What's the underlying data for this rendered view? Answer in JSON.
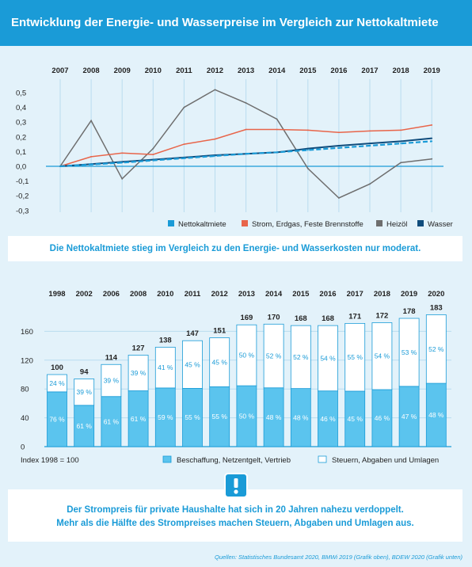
{
  "title": "Entwicklung der Energie- und Wasserpreise im Vergleich zur Nettokaltmiete",
  "colors": {
    "accent": "#1a9bd7",
    "background": "#e3f2fa",
    "nettokaltmiete": "#1a9bd7",
    "strom": "#e8654a",
    "heizoel": "#6e6e6e",
    "wasser": "#0f4c7c",
    "beschaffung": "#5bc4ee"
  },
  "chart_data": [
    {
      "type": "line",
      "x": [
        "2007",
        "2008",
        "2009",
        "2010",
        "2011",
        "2012",
        "2013",
        "2014",
        "2015",
        "2016",
        "2017",
        "2018",
        "2019"
      ],
      "yticks": [
        "0,5",
        "0,4",
        "0,3",
        "0,2",
        "0,1",
        "0,0",
        "-0,1",
        "-0,2",
        "-0,3"
      ],
      "ylim": [
        -0.3,
        0.55
      ],
      "series": [
        {
          "name": "Nettokaltmiete",
          "color": "#1a9bd7",
          "style": "dashed",
          "values": [
            0.0,
            0.012,
            0.025,
            0.04,
            0.055,
            0.07,
            0.085,
            0.095,
            0.11,
            0.125,
            0.14,
            0.155,
            0.17
          ]
        },
        {
          "name": "Strom, Erdgas, Feste Brennstoffe",
          "color": "#e8654a",
          "style": "solid",
          "values": [
            0.0,
            0.065,
            0.09,
            0.08,
            0.15,
            0.185,
            0.25,
            0.25,
            0.245,
            0.23,
            0.24,
            0.245,
            0.28
          ]
        },
        {
          "name": "Heizöl",
          "color": "#6e6e6e",
          "style": "solid",
          "values": [
            0.0,
            0.31,
            -0.085,
            0.12,
            0.4,
            0.52,
            0.43,
            0.32,
            -0.015,
            -0.215,
            -0.12,
            0.025,
            0.05
          ]
        },
        {
          "name": "Wasser",
          "color": "#0f4c7c",
          "style": "solid",
          "values": [
            0.0,
            0.015,
            0.03,
            0.045,
            0.06,
            0.075,
            0.085,
            0.095,
            0.12,
            0.14,
            0.155,
            0.17,
            0.19
          ]
        }
      ],
      "legend_position": "bottom-right",
      "grid": "vertical"
    },
    {
      "type": "bar",
      "categories": [
        "1998",
        "2002",
        "2006",
        "2008",
        "2010",
        "2011",
        "2012",
        "2013",
        "2014",
        "2015",
        "2016",
        "2017",
        "2018",
        "2019",
        "2020"
      ],
      "totals": [
        100,
        94,
        114,
        127,
        138,
        147,
        151,
        169,
        170,
        168,
        168,
        171,
        172,
        178,
        183
      ],
      "yticks": [
        "160",
        "120",
        "80",
        "40",
        "0"
      ],
      "ylim": [
        0,
        200
      ],
      "series": [
        {
          "name": "Beschaffung, Netzentgelt, Vertrieb",
          "labels": [
            "76 %",
            "61 %",
            "61 %",
            "61 %",
            "59 %",
            "55 %",
            "55 %",
            "50 %",
            "48 %",
            "48 %",
            "46 %",
            "45 %",
            "46 %",
            "47 %",
            "48 %"
          ],
          "values": [
            76,
            61,
            61,
            61,
            59,
            55,
            55,
            50,
            48,
            48,
            46,
            45,
            46,
            47,
            48
          ]
        },
        {
          "name": "Steuern, Abgaben und Umlagen",
          "labels": [
            "24 %",
            "39 %",
            "39 %",
            "39 %",
            "41 %",
            "45 %",
            "45 %",
            "50 %",
            "52 %",
            "52 %",
            "54 %",
            "55 %",
            "54 %",
            "53 %",
            "52 %"
          ],
          "values": [
            24,
            39,
            39,
            39,
            41,
            45,
            45,
            50,
            52,
            52,
            54,
            55,
            54,
            53,
            52
          ]
        }
      ],
      "index_label": "Index 1998 = 100",
      "legend_position": "bottom-right"
    }
  ],
  "box1": {
    "text": "Die Nettokaltmiete stieg im Vergleich zu den Energie- und Wasserkosten nur moderat."
  },
  "box2": {
    "icon": "exclamation-icon",
    "line1": "Der Strompreis für private Haushalte hat sich in 20 Jahren nahezu verdoppelt.",
    "line2": "Mehr als die Hälfte des Strompreises machen Steuern, Abgaben und Umlagen aus."
  },
  "sources": "Quellen: Statistisches Bundesamt 2020, BMWi 2019 (Grafik oben), BDEW 2020 (Grafik unten)"
}
